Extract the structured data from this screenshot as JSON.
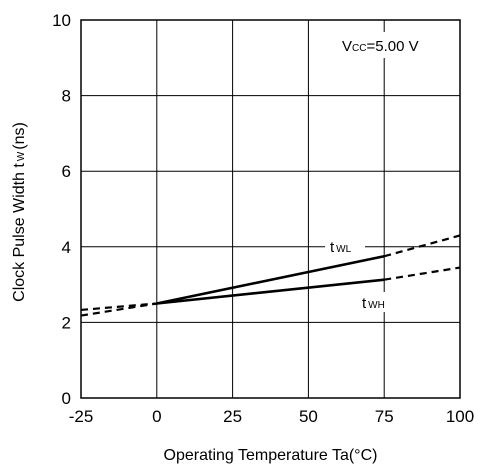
{
  "chart_data": {
    "type": "line",
    "title": "",
    "xlabel": "Operating Temperature Ta(°C)",
    "ylabel_main": "Clock Pulse Width t",
    "ylabel_sub": "W",
    "ylabel_unit": "(ns)",
    "xlim": [
      -25,
      100
    ],
    "ylim": [
      0,
      10
    ],
    "x_ticks": [
      "-25",
      "0",
      "25",
      "50",
      "75",
      "100"
    ],
    "y_ticks": [
      "0",
      "2",
      "4",
      "6",
      "8",
      "10"
    ],
    "grid": true,
    "condition": {
      "main": "V",
      "sub": "CC",
      "value": "=5.00 V"
    },
    "series": [
      {
        "name_main": "t",
        "name_sub": "WL",
        "measured": {
          "x": [
            0,
            75
          ],
          "y": [
            2.5,
            3.75
          ]
        },
        "extrapolated": [
          {
            "x": [
              -25,
              0
            ],
            "y": [
              2.18,
              2.5
            ]
          },
          {
            "x": [
              75,
              100
            ],
            "y": [
              3.75,
              4.3
            ]
          }
        ]
      },
      {
        "name_main": "t",
        "name_sub": "WH",
        "measured": {
          "x": [
            0,
            75
          ],
          "y": [
            2.5,
            3.13
          ]
        },
        "extrapolated": [
          {
            "x": [
              -25,
              0
            ],
            "y": [
              2.33,
              2.5
            ]
          },
          {
            "x": [
              75,
              100
            ],
            "y": [
              3.13,
              3.45
            ]
          }
        ]
      }
    ]
  }
}
